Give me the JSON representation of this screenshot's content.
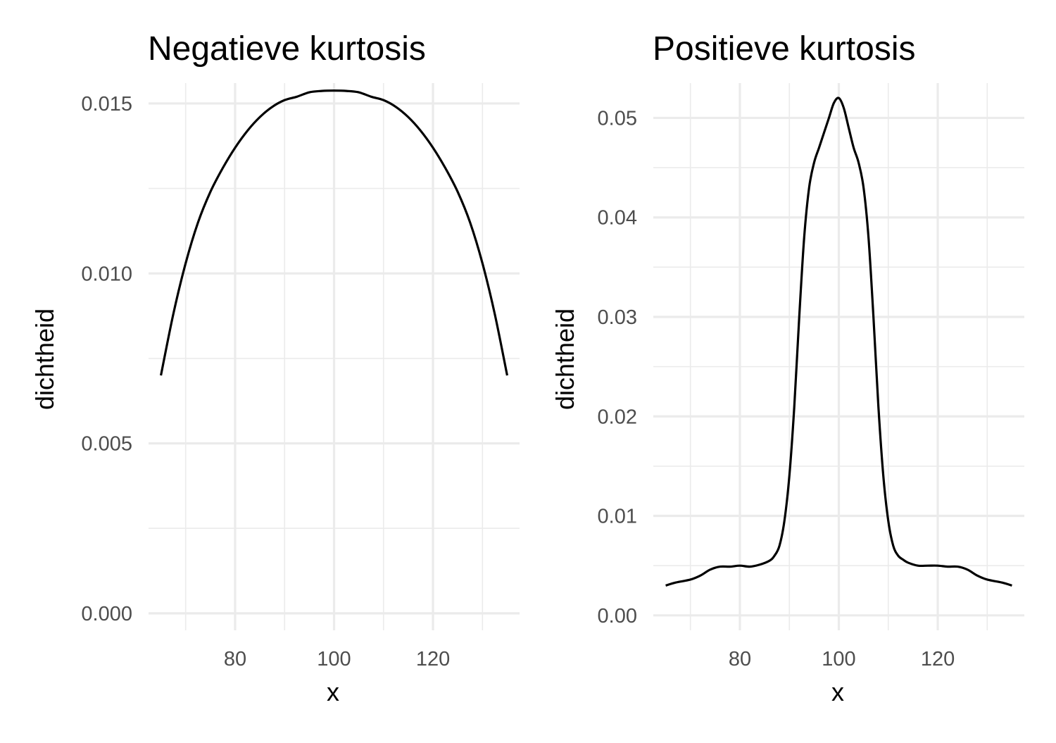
{
  "chart_data": [
    {
      "type": "line",
      "title": "Negatieve kurtosis",
      "xlabel": "x",
      "ylabel": "dichtheid",
      "xlim": [
        62.5,
        137.5
      ],
      "ylim": [
        -0.0005,
        0.0156
      ],
      "x_ticks": [
        80,
        100,
        120
      ],
      "x_tick_labels": [
        "80",
        "100",
        "120"
      ],
      "x_minor_ticks": [
        70,
        90,
        110,
        130
      ],
      "y_ticks": [
        0.0,
        0.005,
        0.01,
        0.015
      ],
      "y_tick_labels": [
        "0.000",
        "0.005",
        "0.010",
        "0.015"
      ],
      "y_minor_ticks": [
        0.0025,
        0.0075,
        0.0125
      ],
      "grid": true,
      "series": [
        {
          "x": [
            65,
            67.5,
            70,
            72.5,
            75,
            77.5,
            80,
            82.5,
            85,
            87.5,
            90,
            92.5,
            95,
            97.5,
            100,
            102.5,
            105,
            107.5,
            110,
            112.5,
            115,
            117.5,
            120,
            122.5,
            125,
            127.5,
            130,
            132.5,
            135
          ],
          "y": [
            0.007,
            0.0088,
            0.0103,
            0.0115,
            0.0124,
            0.0131,
            0.0137,
            0.0142,
            0.0146,
            0.0149,
            0.0151,
            0.0152,
            0.01533,
            0.01537,
            0.01538,
            0.01537,
            0.01533,
            0.0152,
            0.0151,
            0.0149,
            0.0146,
            0.0142,
            0.0137,
            0.0131,
            0.0124,
            0.0115,
            0.0103,
            0.0088,
            0.007
          ]
        }
      ]
    },
    {
      "type": "line",
      "title": "Positieve kurtosis",
      "xlabel": "x",
      "ylabel": "dichtheid",
      "xlim": [
        62.5,
        137.5
      ],
      "ylim": [
        -0.0015,
        0.0535
      ],
      "x_ticks": [
        80,
        100,
        120
      ],
      "x_tick_labels": [
        "80",
        "100",
        "120"
      ],
      "x_minor_ticks": [
        70,
        90,
        110,
        130
      ],
      "y_ticks": [
        0.0,
        0.01,
        0.02,
        0.03,
        0.04,
        0.05
      ],
      "y_tick_labels": [
        "0.00",
        "0.01",
        "0.02",
        "0.03",
        "0.04",
        "0.05"
      ],
      "y_minor_ticks": [
        0.005,
        0.015,
        0.025,
        0.035,
        0.045
      ],
      "grid": true,
      "series": [
        {
          "x": [
            65,
            67,
            70,
            72,
            74,
            76,
            78,
            80,
            82,
            84,
            86,
            87,
            88,
            89,
            90,
            91,
            92,
            93,
            94,
            95,
            96,
            97,
            98,
            99,
            100,
            101,
            102,
            103,
            104,
            105,
            106,
            107,
            108,
            109,
            110,
            111,
            112,
            113,
            114,
            116,
            118,
            120,
            122,
            124,
            126,
            128,
            130,
            133,
            135
          ],
          "y": [
            0.003,
            0.0033,
            0.0036,
            0.004,
            0.0046,
            0.0049,
            0.0049,
            0.005,
            0.0049,
            0.0051,
            0.0055,
            0.006,
            0.007,
            0.0095,
            0.014,
            0.021,
            0.03,
            0.038,
            0.043,
            0.0455,
            0.047,
            0.0485,
            0.05,
            0.0515,
            0.052,
            0.051,
            0.049,
            0.047,
            0.0455,
            0.043,
            0.038,
            0.03,
            0.021,
            0.014,
            0.0095,
            0.007,
            0.006,
            0.0056,
            0.0053,
            0.005,
            0.005,
            0.005,
            0.0049,
            0.0049,
            0.0046,
            0.004,
            0.0036,
            0.0033,
            0.003
          ]
        }
      ]
    }
  ]
}
